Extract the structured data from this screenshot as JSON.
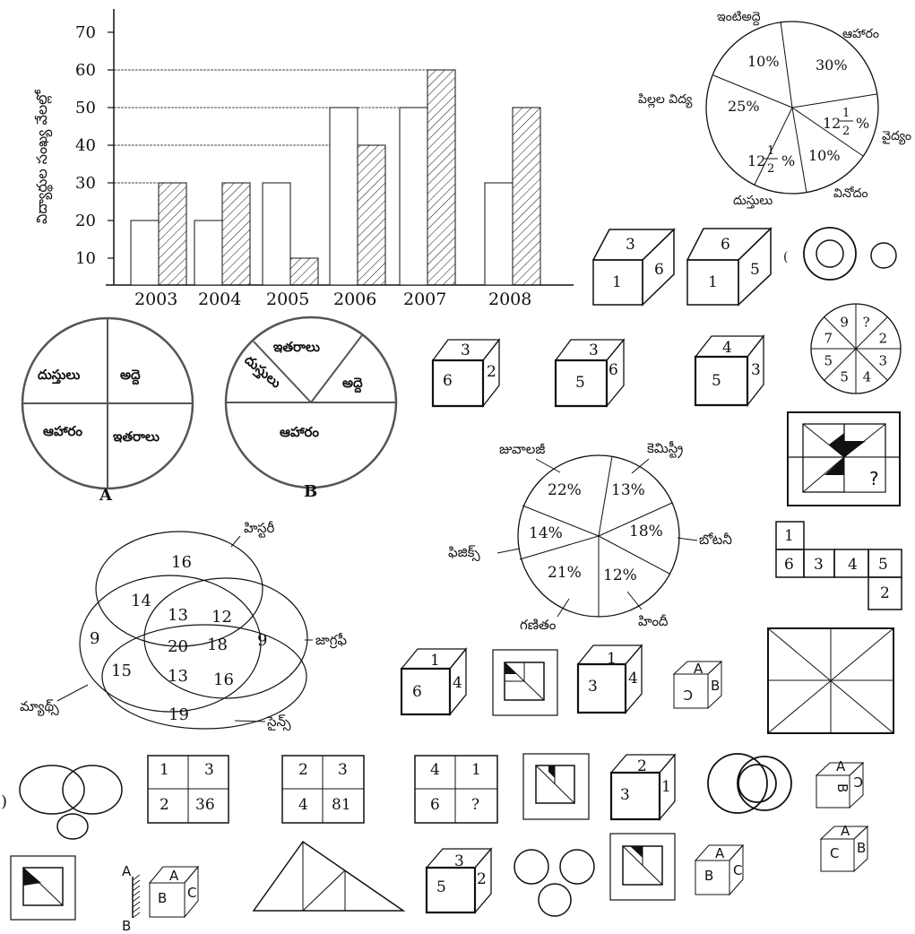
{
  "chart_data": {
    "type": "bar",
    "categories": [
      "2003",
      "2004",
      "2005",
      "2006",
      "2007",
      "2008"
    ],
    "series": [
      {
        "values": [
          20,
          20,
          30,
          50,
          50,
          30
        ],
        "pattern": "plain"
      },
      {
        "values": [
          30,
          30,
          10,
          40,
          60,
          50
        ],
        "pattern": "hatched"
      }
    ],
    "ylabel": "విద్యార్థుల సంఖ్య వేలల్లో",
    "yticks": [
      10,
      20,
      30,
      40,
      50,
      60,
      70
    ],
    "ylim": [
      0,
      70
    ]
  },
  "budget_pie": {
    "labels": {
      "rent": "ఇంటిఅద్దె",
      "food": "ఆహారం",
      "education": "పిల్లల విద్య",
      "medical": "వైద్యం",
      "entertainment": "వినోదం",
      "clothes": "దుస్తులు"
    },
    "pct": {
      "rent": "10%",
      "food": "30%",
      "education": "25%",
      "medical_whole": "12",
      "clothes_whole": "12",
      "half_num": "1",
      "half_den": "2",
      "pct_sign": "%",
      "entertainment": "10%"
    }
  },
  "pie_A": {
    "labels": [
      "దుస్తులు",
      "అద్దె",
      "ఆహారం",
      "ఇతరాలు"
    ],
    "caption": "A"
  },
  "pie_B": {
    "labels": [
      "ఇతరాలు",
      "దుస్తులు",
      "అద్దె",
      "ఆహారం"
    ],
    "caption": "B"
  },
  "subject_pie": {
    "labels": [
      "జువాలజీ",
      "కెమిస్ట్రీ",
      "బోటనీ",
      "హిందీ",
      "గణితం",
      "ఫిజిక్స్"
    ],
    "values": [
      "22%",
      "13%",
      "18%",
      "12%",
      "21%",
      "14%"
    ]
  },
  "venn": {
    "labels": {
      "history": "హిస్టరీ",
      "geography": "జాగ్రఫీ",
      "science": "సైన్స్",
      "maths": "మ్యాథ్స్"
    },
    "numbers": [
      "16",
      "14",
      "12",
      "13",
      "9",
      "20",
      "18",
      "9",
      "15",
      "13",
      "16",
      "19"
    ]
  },
  "dice_top": [
    {
      "top": "3",
      "front": "1",
      "side": "6"
    },
    {
      "top": "6",
      "front": "1",
      "side": "5"
    }
  ],
  "dice_mid": [
    {
      "top": "3",
      "front": "6",
      "side": "2"
    },
    {
      "top": "3",
      "front": "5",
      "side": "6"
    },
    {
      "top": "4",
      "front": "5",
      "side": "3"
    }
  ],
  "wheel": [
    "?",
    "2",
    "3",
    "4",
    "5",
    "5",
    "7",
    "9"
  ],
  "unfold_net": [
    "1",
    "6",
    "3",
    "4",
    "5",
    "2"
  ],
  "dice_row3": [
    {
      "top": "1",
      "front": "6",
      "side": "4"
    },
    {
      "top": "1",
      "front": "3",
      "side": "4"
    }
  ],
  "abc_cube_1": {
    "top": "A",
    "front": "C",
    "side": "B"
  },
  "grids": [
    [
      "1",
      "3",
      "2",
      "36"
    ],
    [
      "2",
      "3",
      "4",
      "81"
    ],
    [
      "4",
      "1",
      "6",
      "?"
    ]
  ],
  "dice_row4": {
    "top": "2",
    "front": "3",
    "side": "1"
  },
  "abc_cube_2": {
    "top": "A",
    "front": "B",
    "side": "C"
  },
  "abc_cube_3": {
    "top": "A",
    "front": "C",
    "side": "B"
  },
  "mirror_cube": {
    "mirror_top": "A",
    "mirror_bottom": "B",
    "top": "A",
    "front": "B",
    "side": "C"
  },
  "dice_row5": {
    "top": "3",
    "front": "5",
    "side": "2"
  },
  "abc_cube_4": {
    "top": "A",
    "front": "B",
    "side": "C"
  },
  "question_mark": "?",
  "left_bracket": ")",
  "small_paren": "("
}
